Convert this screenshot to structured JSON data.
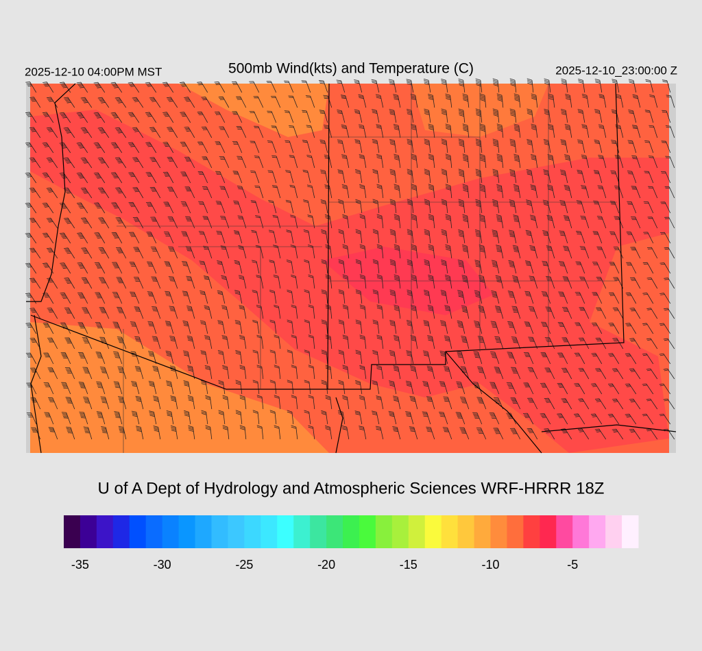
{
  "header": {
    "valid_time": "2025-12-10 04:00PM MST",
    "title": "500mb Wind(kts) and Temperature (C)",
    "run_time": "2025-12-10_23:00:00 Z"
  },
  "credit": "U of A Dept of Hydrology and Atmospheric Sciences WRF-HRRR 18Z",
  "colorbar": {
    "range": [
      -36,
      -1
    ],
    "ticks": [
      -35,
      -30,
      -25,
      -20,
      -15,
      -10,
      -5
    ],
    "colors": [
      "#3a0050",
      "#3c0096",
      "#3c14c8",
      "#1e28e6",
      "#0050ff",
      "#0a6cff",
      "#0a82ff",
      "#0a96ff",
      "#1ea8ff",
      "#32bcff",
      "#3cc8ff",
      "#3cd8ff",
      "#3ce8ff",
      "#3cffff",
      "#3cf0d0",
      "#3ce6a0",
      "#3ce678",
      "#3cf050",
      "#4afa3c",
      "#88f03c",
      "#a8f03c",
      "#d0f03c",
      "#fafa3c",
      "#ffe03c",
      "#ffc83c",
      "#ffaa3c",
      "#ff8c3c",
      "#ff6e3c",
      "#ff4040",
      "#ff2850",
      "#ff4aa0",
      "#ff78d8",
      "#ffa8f0",
      "#ffd0f0",
      "#fff0ff"
    ]
  }
}
